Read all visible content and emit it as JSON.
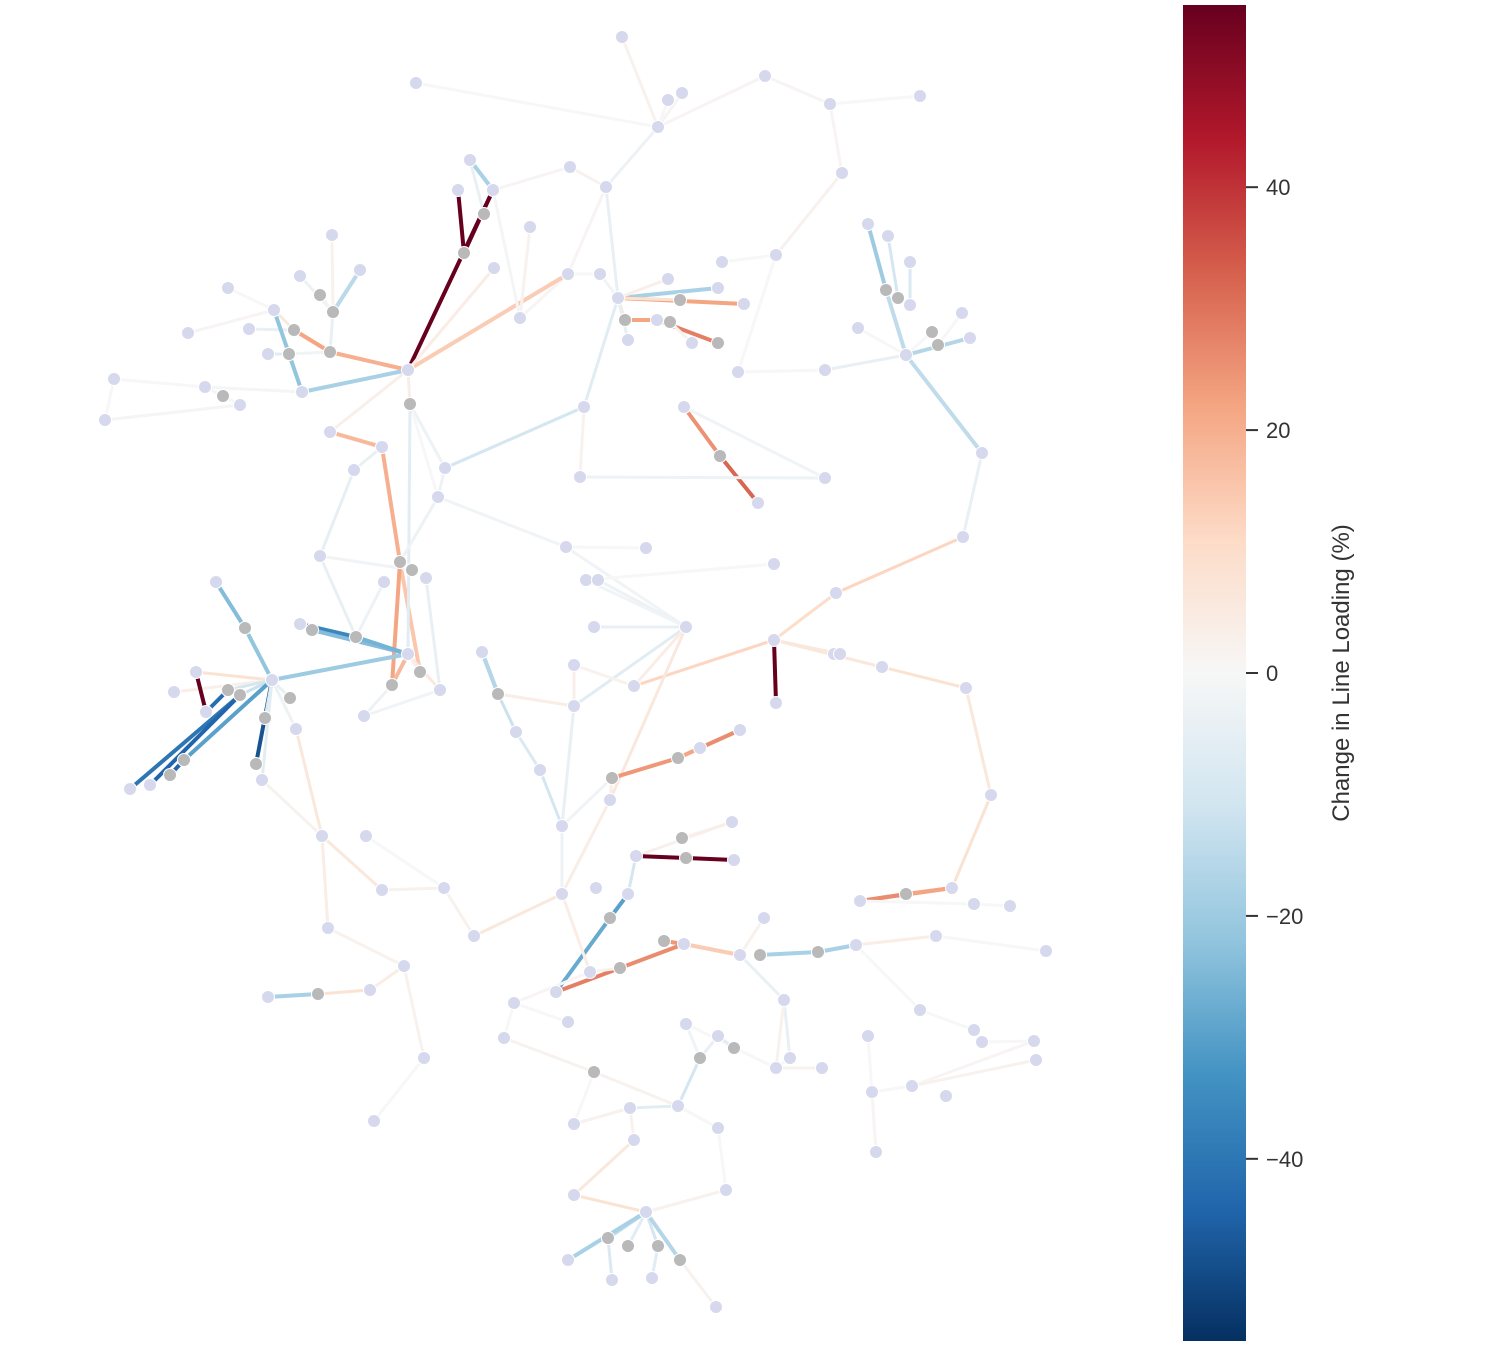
{
  "colorbar": {
    "label": "Change in Line Loading (%)",
    "min": -55,
    "max": 55,
    "ticks": [
      {
        "value": 40,
        "label": "40"
      },
      {
        "value": 20,
        "label": "20"
      },
      {
        "value": 0,
        "label": "0"
      },
      {
        "value": -20,
        "label": "−20"
      },
      {
        "value": -40,
        "label": "−40"
      }
    ],
    "colormap": "RdBu_r",
    "colormap_stops": [
      "#053061",
      "#2166ac",
      "#4393c3",
      "#92c5de",
      "#d1e5f0",
      "#f7f7f7",
      "#fddbc7",
      "#f4a582",
      "#d6604d",
      "#b2182b",
      "#67001f"
    ]
  },
  "colors": {
    "bus_node": "#d6d8ee",
    "transformer_node": "#b9b9b9"
  }
}
